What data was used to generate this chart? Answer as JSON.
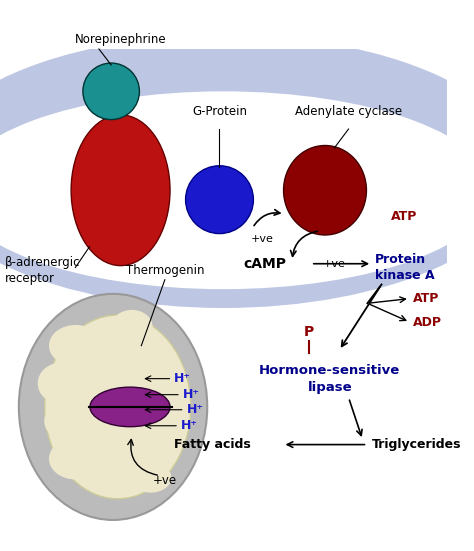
{
  "bg_color": "#ffffff",
  "membrane_color": "#8899cc",
  "membrane_alpha": 0.55,
  "norepinephrine_color": "#1a9090",
  "beta_receptor_color": "#bb1111",
  "gprotein_color": "#1a1acc",
  "adenylate_color": "#8b0000",
  "mito_outer_color": "#bbbbbb",
  "mito_inner_color": "#ede8cc",
  "mito_membrane_color": "#882288",
  "h_color": "#1a1acc",
  "atp_label_color": "#8b0000",
  "kinase_color": "#00008b",
  "p_color": "#8b0000",
  "hsl_color": "#00008b",
  "labels": {
    "norepinephrine": "Norepinephrine",
    "gprotein": "G-Protein",
    "adenylate": "Adenylate cyclase",
    "beta": "β-adrenergic\nreceptor",
    "thermogenin": "Thermogenin",
    "camp": "cAMP",
    "plus_ve1": "+ve",
    "plus_ve2": "+ve",
    "plus_ve3": "+ve",
    "protein_kinase": "Protein\nkinase A",
    "atp1": "ATP",
    "atp2": "ATP",
    "adp": "ADP",
    "p": "P",
    "hsl": "Hormone-sensitive\nlipase",
    "fatty": "Fatty acids",
    "triglycerides": "Triglycerides",
    "h1": "H⁺",
    "h2": "H⁺",
    "h3": "H⁺",
    "h4": "H⁺"
  }
}
